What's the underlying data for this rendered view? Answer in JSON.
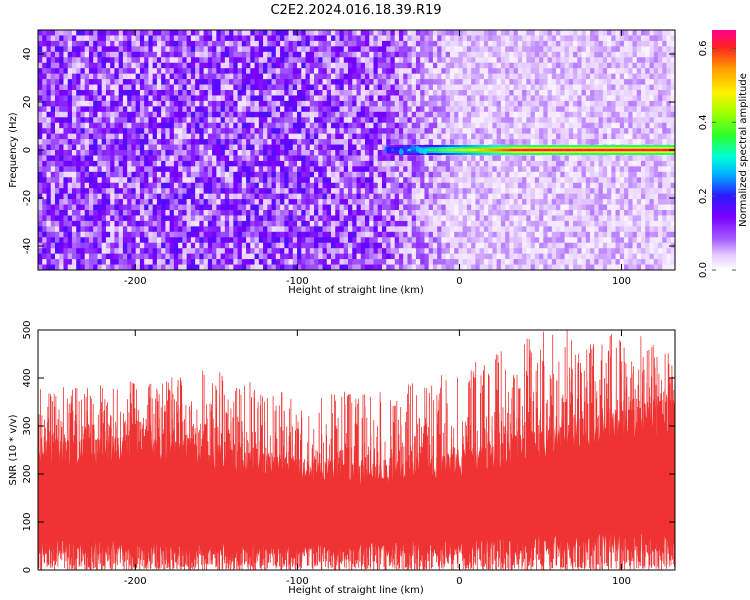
{
  "figure": {
    "title": "C2E2.2024.016.18.39.R19"
  },
  "chart_data": [
    {
      "type": "heatmap",
      "xlabel": "Height of straight line (km)",
      "ylabel": "Frequency (Hz)",
      "xlim": [
        -260,
        133
      ],
      "ylim": [
        -50,
        50
      ],
      "x_ticks": [
        -200,
        -100,
        0,
        100
      ],
      "y_ticks": [
        -40,
        -20,
        0,
        20,
        40
      ],
      "colorbar": {
        "label": "Normalized spectral amplitude",
        "range": [
          0.0,
          0.65
        ],
        "ticks": [
          0.0,
          0.2,
          0.4,
          0.6
        ],
        "colormap": "white-purple-blue-cyan-green-yellow-red-magenta"
      },
      "background_level": {
        "x": [
          -260,
          -100,
          -50,
          -20,
          0,
          50,
          133
        ],
        "amplitude": [
          0.1,
          0.1,
          0.09,
          0.06,
          0.04,
          0.04,
          0.04
        ]
      },
      "signal_line": {
        "frequency": 0,
        "x_start": -45,
        "x_end": 133,
        "amplitude_start": 0.22,
        "amplitude_end": 0.62
      },
      "grid": false
    },
    {
      "type": "area",
      "xlabel": "Height of straight line (km)",
      "ylabel": "SNR (10 * v/v)",
      "xlim": [
        -260,
        133
      ],
      "ylim": [
        0,
        500
      ],
      "x_ticks": [
        -200,
        -100,
        0,
        100
      ],
      "y_ticks": [
        0,
        100,
        200,
        300,
        400,
        500
      ],
      "color": "#ef3333",
      "envelope": {
        "x": [
          -260,
          -200,
          -150,
          -100,
          -50,
          0,
          50,
          100,
          133
        ],
        "upper_typical": [
          265,
          270,
          255,
          225,
          215,
          235,
          285,
          330,
          345
        ],
        "upper_peak": [
          380,
          395,
          420,
          360,
          380,
          420,
          500,
          500,
          470
        ],
        "lower_typical": [
          45,
          45,
          40,
          38,
          40,
          45,
          50,
          55,
          55
        ]
      },
      "grid": false
    }
  ]
}
